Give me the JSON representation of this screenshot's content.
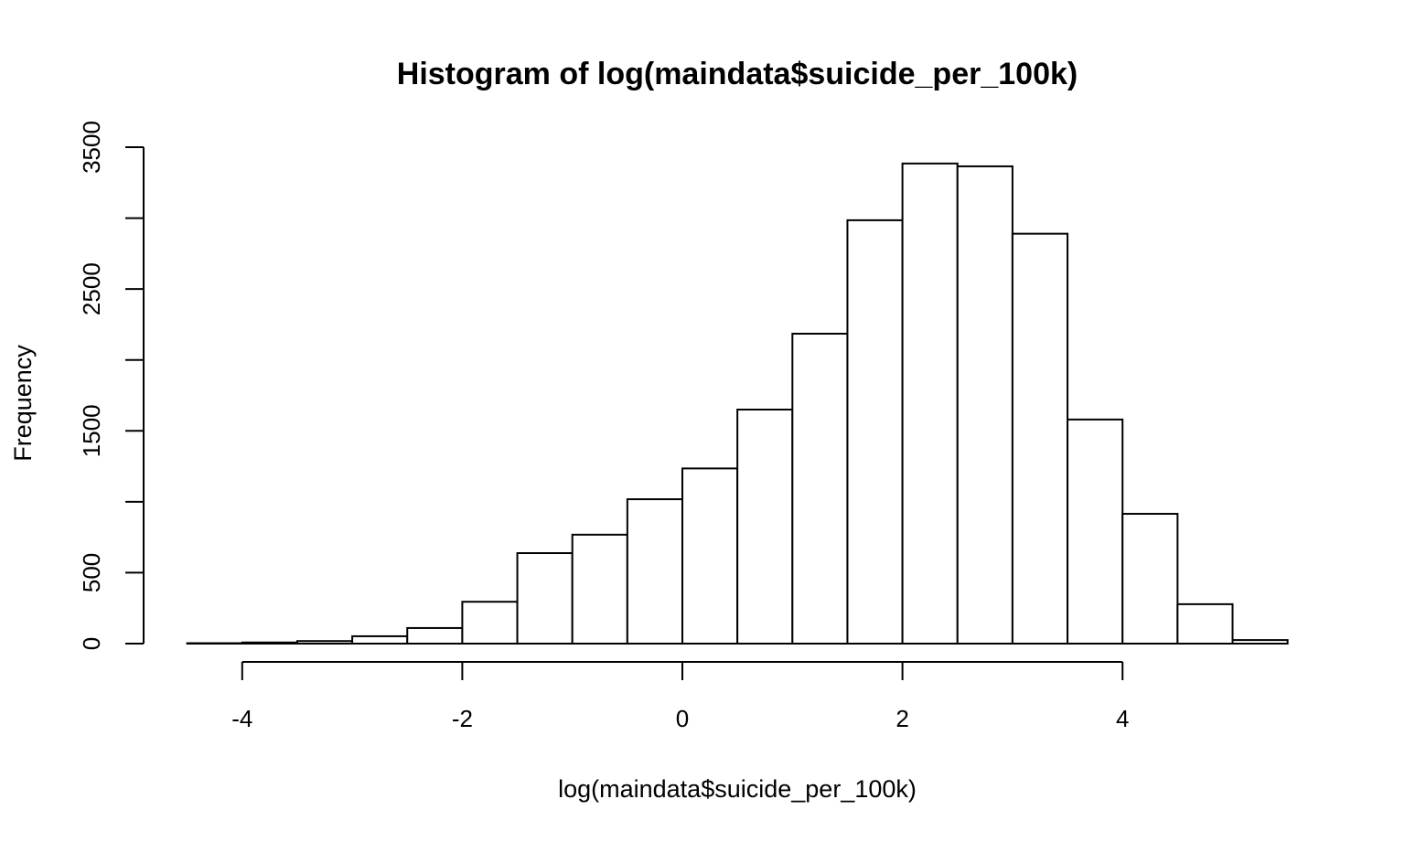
{
  "chart_data": {
    "type": "bar",
    "title": "Histogram of log(maindata$suicide_per_100k)",
    "xlabel": "log(maindata$suicide_per_100k)",
    "ylabel": "Frequency",
    "xlim": [
      -4.5,
      5.5
    ],
    "ylim": [
      0,
      3500
    ],
    "x_ticks": [
      -4,
      -2,
      0,
      2,
      4
    ],
    "y_ticks": [
      0,
      500,
      1500,
      2500,
      3500
    ],
    "y_tick_marks": [
      0,
      500,
      1000,
      1500,
      2000,
      2500,
      3000,
      3500
    ],
    "bin_edges": [
      -4.5,
      -4.0,
      -3.5,
      -3.0,
      -2.5,
      -2.0,
      -1.5,
      -1.0,
      -0.5,
      0.0,
      0.5,
      1.0,
      1.5,
      2.0,
      2.5,
      3.0,
      3.5,
      4.0,
      4.5,
      5.0,
      5.5
    ],
    "values": [
      3,
      8,
      18,
      52,
      110,
      295,
      638,
      768,
      1018,
      1235,
      1650,
      2185,
      2985,
      3385,
      3365,
      2890,
      1580,
      915,
      278,
      25
    ],
    "grid": false,
    "colors": {
      "bar_fill": "#ffffff",
      "bar_stroke": "#000000"
    }
  }
}
